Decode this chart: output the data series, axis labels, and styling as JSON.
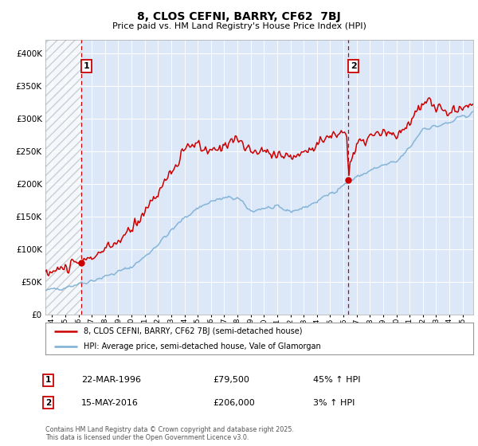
{
  "title": "8, CLOS CEFNI, BARRY, CF62  7BJ",
  "subtitle": "Price paid vs. HM Land Registry's House Price Index (HPI)",
  "legend_line1": "8, CLOS CEFNI, BARRY, CF62 7BJ (semi-detached house)",
  "legend_line2": "HPI: Average price, semi-detached house, Vale of Glamorgan",
  "annotation1_date": "22-MAR-1996",
  "annotation1_price": "£79,500",
  "annotation1_hpi": "45% ↑ HPI",
  "annotation1_year": 1996.22,
  "annotation1_value": 79500,
  "annotation2_date": "15-MAY-2016",
  "annotation2_price": "£206,000",
  "annotation2_hpi": "3% ↑ HPI",
  "annotation2_year": 2016.37,
  "annotation2_value": 206000,
  "footer": "Contains HM Land Registry data © Crown copyright and database right 2025.\nThis data is licensed under the Open Government Licence v3.0.",
  "ylim_max": 420000,
  "xlim_start": 1993.5,
  "xlim_end": 2025.8,
  "hatch_end": 1996.22,
  "red_color": "#cc0000",
  "blue_color": "#7bafd4",
  "background_color": "#dce8f8",
  "vline_color": "#cc0000",
  "yticks": [
    0,
    50000,
    100000,
    150000,
    200000,
    250000,
    300000,
    350000,
    400000
  ],
  "xtick_start": 1994,
  "xtick_end": 2025
}
